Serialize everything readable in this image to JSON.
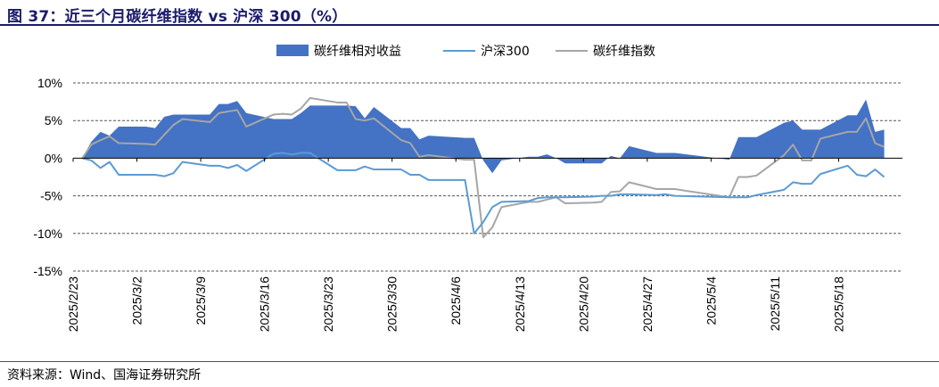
{
  "header": {
    "title": "图 37：近三个月碳纤维指数 vs 沪深 300（%）"
  },
  "footer": {
    "source": "资料来源：Wind、国海证券研究所"
  },
  "colors": {
    "excess": "#4472c4",
    "hs300": "#5b9bd5",
    "carbon": "#a6a6a6",
    "title": "#1b1b6b"
  },
  "chart_data": {
    "type": "area",
    "title": "",
    "xlabel": "",
    "ylabel": "",
    "ylim": [
      -15,
      10
    ],
    "ytick_labels": [
      "10%",
      "5%",
      "0%",
      "-5%",
      "-10%",
      "-15%"
    ],
    "yticks": [
      10,
      5,
      0,
      -5,
      -10,
      -15
    ],
    "grid": true,
    "legend_position": "top-center",
    "x_tick_labels": [
      "2025/2/23",
      "2025/3/2",
      "2025/3/9",
      "2025/3/16",
      "2025/3/23",
      "2025/3/30",
      "2025/4/6",
      "2025/4/13",
      "2025/4/20",
      "2025/4/27",
      "2025/5/4",
      "2025/5/11",
      "2025/5/18"
    ],
    "x": [
      "2025-02-24",
      "2025-02-25",
      "2025-02-26",
      "2025-02-27",
      "2025-02-28",
      "2025-03-03",
      "2025-03-04",
      "2025-03-05",
      "2025-03-06",
      "2025-03-07",
      "2025-03-10",
      "2025-03-11",
      "2025-03-12",
      "2025-03-13",
      "2025-03-14",
      "2025-03-17",
      "2025-03-18",
      "2025-03-19",
      "2025-03-20",
      "2025-03-21",
      "2025-03-24",
      "2025-03-25",
      "2025-03-26",
      "2025-03-27",
      "2025-03-28",
      "2025-03-31",
      "2025-04-01",
      "2025-04-02",
      "2025-04-03",
      "2025-04-07",
      "2025-04-08",
      "2025-04-09",
      "2025-04-10",
      "2025-04-11",
      "2025-04-14",
      "2025-04-15",
      "2025-04-16",
      "2025-04-17",
      "2025-04-18",
      "2025-04-21",
      "2025-04-22",
      "2025-04-23",
      "2025-04-24",
      "2025-04-25",
      "2025-04-28",
      "2025-04-29",
      "2025-04-30",
      "2025-05-06",
      "2025-05-07",
      "2025-05-08",
      "2025-05-09",
      "2025-05-12",
      "2025-05-13",
      "2025-05-14",
      "2025-05-15",
      "2025-05-16",
      "2025-05-19",
      "2025-05-20",
      "2025-05-21",
      "2025-05-22",
      "2025-05-23"
    ],
    "series": [
      {
        "name": "碳纤维相对收益",
        "kind": "area",
        "values": [
          0.0,
          2.2,
          3.5,
          3.0,
          4.2,
          4.2,
          4.0,
          5.5,
          5.8,
          5.8,
          5.8,
          7.2,
          7.2,
          7.6,
          6.0,
          5.2,
          5.2,
          5.2,
          6.0,
          7.0,
          7.0,
          7.0,
          6.9,
          5.3,
          6.8,
          4.0,
          4.0,
          2.5,
          3.0,
          2.7,
          2.7,
          -0.3,
          -2.0,
          -0.3,
          0.2,
          0.2,
          0.5,
          0.0,
          -0.7,
          -0.7,
          -0.7,
          0.3,
          0.0,
          1.6,
          0.7,
          0.7,
          0.7,
          -0.2,
          2.8,
          2.8,
          2.8,
          4.7,
          5.0,
          3.8,
          3.8,
          3.8,
          5.7,
          5.7,
          7.8,
          3.5,
          3.8
        ]
      },
      {
        "name": "沪深300",
        "kind": "line",
        "values": [
          0.0,
          -0.3,
          -1.3,
          -0.5,
          -2.2,
          -2.2,
          -2.2,
          -2.4,
          -2.0,
          -0.5,
          -1.0,
          -1.0,
          -1.3,
          -0.9,
          -1.7,
          0.6,
          0.7,
          0.5,
          0.7,
          0.7,
          -1.6,
          -1.6,
          -1.6,
          -1.1,
          -1.5,
          -1.5,
          -2.2,
          -2.2,
          -2.9,
          -2.9,
          -10.0,
          -8.5,
          -6.5,
          -5.8,
          -5.7,
          -5.3,
          -5.2,
          -5.2,
          -5.2,
          -5.1,
          -5.0,
          -5.0,
          -4.8,
          -4.8,
          -4.9,
          -4.8,
          -5.0,
          -5.2,
          -5.2,
          -5.2,
          -4.9,
          -4.2,
          -3.2,
          -3.4,
          -3.4,
          -2.1,
          -1.0,
          -2.2,
          -2.4,
          -1.5,
          -2.5
        ]
      },
      {
        "name": "碳纤维指数",
        "kind": "line",
        "values": [
          0.0,
          1.8,
          2.4,
          2.9,
          2.0,
          1.9,
          1.8,
          3.1,
          4.4,
          5.2,
          4.8,
          6.0,
          6.2,
          6.4,
          4.2,
          5.8,
          5.9,
          5.8,
          6.6,
          8.0,
          7.4,
          7.4,
          5.2,
          5.0,
          5.3,
          2.4,
          2.0,
          0.2,
          0.4,
          -0.2,
          -0.2,
          -10.5,
          -9.2,
          -6.5,
          -5.8,
          -5.8,
          -5.5,
          -5.2,
          -6.0,
          -5.9,
          -5.8,
          -4.5,
          -4.4,
          -3.2,
          -4.1,
          -4.1,
          -4.1,
          -5.2,
          -2.5,
          -2.5,
          -2.3,
          0.4,
          1.8,
          -0.3,
          -0.3,
          2.6,
          3.5,
          3.5,
          5.3,
          2.0,
          1.5
        ]
      }
    ]
  }
}
